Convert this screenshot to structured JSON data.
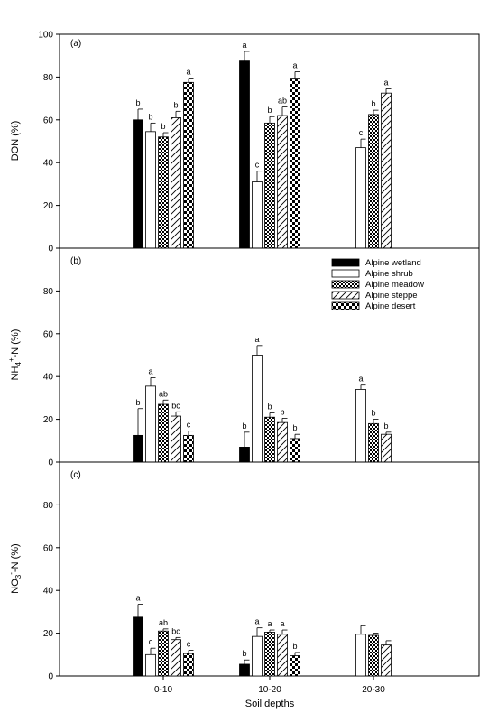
{
  "figure": {
    "xlabel": "Soil depths",
    "categories": [
      "0-10",
      "10-20",
      "20-30"
    ]
  },
  "legend": [
    {
      "name": "Alpine wetland",
      "pattern": "solid"
    },
    {
      "name": "Alpine shrub",
      "pattern": "white"
    },
    {
      "name": "Alpine meadow",
      "pattern": "dots"
    },
    {
      "name": "Alpine steppe",
      "pattern": "diagonal"
    },
    {
      "name": "Alpine desert",
      "pattern": "checker"
    }
  ],
  "chart_data": [
    {
      "type": "bar",
      "panel": "(a)",
      "ylabel": "DON (%)",
      "ylim": [
        0,
        100
      ],
      "yticks": [
        0,
        20,
        40,
        60,
        80,
        100
      ],
      "categories": [
        "0-10",
        "10-20",
        "20-30"
      ],
      "series": [
        {
          "name": "Alpine wetland",
          "values": [
            60,
            87.5,
            null
          ],
          "errors": [
            5,
            4.5,
            null
          ],
          "letters": [
            "b",
            "a",
            null
          ]
        },
        {
          "name": "Alpine shrub",
          "values": [
            54.5,
            31,
            47
          ],
          "errors": [
            4,
            5,
            4
          ],
          "letters": [
            "b",
            "c",
            "c"
          ]
        },
        {
          "name": "Alpine meadow",
          "values": [
            52,
            58.5,
            62.5
          ],
          "errors": [
            2,
            3,
            2
          ],
          "letters": [
            "b",
            "b",
            "b"
          ]
        },
        {
          "name": "Alpine steppe",
          "values": [
            61,
            62,
            72.5
          ],
          "errors": [
            3,
            4,
            2
          ],
          "letters": [
            "b",
            "ab",
            "a"
          ]
        },
        {
          "name": "Alpine desert",
          "values": [
            77.5,
            79.5,
            null
          ],
          "errors": [
            2,
            3,
            null
          ],
          "letters": [
            "a",
            "a",
            null
          ]
        }
      ]
    },
    {
      "type": "bar",
      "panel": "(b)",
      "ylabel_main": "NH",
      "ylabel_sub": "4",
      "ylabel_sup": "+",
      "ylabel_rest": "-N (%)",
      "ylim": [
        0,
        100
      ],
      "yticks": [
        0,
        20,
        40,
        60,
        80
      ],
      "categories": [
        "0-10",
        "10-20",
        "20-30"
      ],
      "series": [
        {
          "name": "Alpine wetland",
          "values": [
            12.5,
            7,
            null
          ],
          "errors": [
            12.5,
            7,
            null
          ],
          "letters": [
            "b",
            "b",
            null
          ]
        },
        {
          "name": "Alpine shrub",
          "values": [
            35.5,
            50,
            34
          ],
          "errors": [
            4,
            4.5,
            2
          ],
          "letters": [
            "a",
            "a",
            "a"
          ]
        },
        {
          "name": "Alpine meadow",
          "values": [
            27,
            21,
            18
          ],
          "errors": [
            2,
            2,
            2
          ],
          "letters": [
            "ab",
            "b",
            "b"
          ]
        },
        {
          "name": "Alpine steppe",
          "values": [
            21.5,
            18.5,
            13
          ],
          "errors": [
            2,
            2,
            1
          ],
          "letters": [
            "bc",
            "b",
            "b"
          ]
        },
        {
          "name": "Alpine desert",
          "values": [
            12.5,
            11,
            null
          ],
          "errors": [
            2,
            2,
            null
          ],
          "letters": [
            "c",
            "b",
            null
          ]
        }
      ]
    },
    {
      "type": "bar",
      "panel": "(c)",
      "ylabel_main": "NO",
      "ylabel_sub": "3",
      "ylabel_sup": "-",
      "ylabel_rest": "-N (%)",
      "ylim": [
        0,
        100
      ],
      "yticks": [
        0,
        20,
        40,
        60,
        80
      ],
      "categories": [
        "0-10",
        "10-20",
        "20-30"
      ],
      "series": [
        {
          "name": "Alpine wetland",
          "values": [
            27.5,
            5.5,
            null
          ],
          "errors": [
            6,
            2,
            null
          ],
          "letters": [
            "a",
            "b",
            null
          ]
        },
        {
          "name": "Alpine shrub",
          "values": [
            10,
            18.5,
            19.5
          ],
          "errors": [
            3,
            4,
            4
          ],
          "letters": [
            "c",
            "a",
            null
          ]
        },
        {
          "name": "Alpine meadow",
          "values": [
            21,
            20.5,
            19
          ],
          "errors": [
            1,
            1,
            1
          ],
          "letters": [
            "ab",
            "a",
            null
          ]
        },
        {
          "name": "Alpine steppe",
          "values": [
            17,
            19.5,
            14.5
          ],
          "errors": [
            1,
            2,
            2
          ],
          "letters": [
            "bc",
            "a",
            null
          ]
        },
        {
          "name": "Alpine desert",
          "values": [
            10.5,
            9.5,
            null
          ],
          "errors": [
            1.5,
            1.5,
            null
          ],
          "letters": [
            "c",
            "b",
            null
          ]
        }
      ]
    }
  ]
}
